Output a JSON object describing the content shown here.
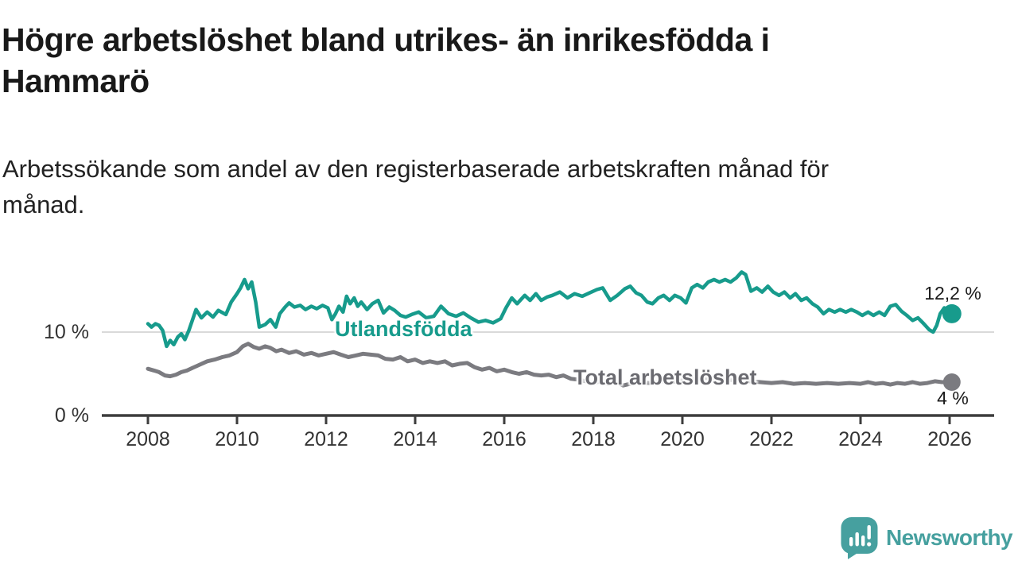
{
  "header": {
    "title": "Högre arbetslöshet bland utrikes- än inrikesfödda i Hammarö",
    "title_line1": "Högre arbetslöshet bland utrikes- än inrikesfödda i",
    "title_line2": "Hammarö",
    "subtitle_line1": "Arbetssökande som andel av den registerbaserade arbetskraften månad för",
    "subtitle_line2": "månad."
  },
  "colors": {
    "accent_teal": "#179b8c",
    "line_gray": "#7b7b80",
    "label_gray": "#6b6b71",
    "axis": "#3d3d3d",
    "tick_text": "#333333",
    "gridline": "#d9d9d9",
    "annotation_text": "#1a1a1a",
    "logo_teal": "#46a09f",
    "background": "#ffffff"
  },
  "chart_data": {
    "type": "line",
    "title": "Högre arbetslöshet bland utrikes- än inrikesfödda i Hammarö",
    "xlabel": "",
    "ylabel": "",
    "unit": "%",
    "grid": "horizontal-10-only",
    "legend_position": "inline-labels-on-lines",
    "x_range": [
      2008,
      2026.3
    ],
    "ylim": [
      0,
      18.5
    ],
    "x_ticks": [
      2008,
      2010,
      2012,
      2014,
      2016,
      2018,
      2020,
      2022,
      2024,
      2026
    ],
    "yaxis": {
      "ticks": [
        {
          "value": 0,
          "label": "0 %"
        },
        {
          "value": 10,
          "label": "10 %"
        }
      ]
    },
    "series": [
      {
        "name": "Utlandsfödda",
        "color": "#179b8c",
        "end_label": "12,2 %",
        "end_value": 12.2,
        "points": [
          [
            2008.0,
            11.0
          ],
          [
            2008.08,
            10.6
          ],
          [
            2008.17,
            11.0
          ],
          [
            2008.25,
            10.8
          ],
          [
            2008.33,
            10.2
          ],
          [
            2008.42,
            8.3
          ],
          [
            2008.5,
            9.0
          ],
          [
            2008.58,
            8.5
          ],
          [
            2008.67,
            9.4
          ],
          [
            2008.75,
            9.8
          ],
          [
            2008.83,
            9.1
          ],
          [
            2008.92,
            10.2
          ],
          [
            2009.08,
            12.7
          ],
          [
            2009.2,
            11.7
          ],
          [
            2009.33,
            12.4
          ],
          [
            2009.46,
            11.8
          ],
          [
            2009.58,
            12.6
          ],
          [
            2009.75,
            12.1
          ],
          [
            2009.87,
            13.6
          ],
          [
            2010.0,
            14.6
          ],
          [
            2010.08,
            15.3
          ],
          [
            2010.17,
            16.3
          ],
          [
            2010.25,
            15.2
          ],
          [
            2010.33,
            16.0
          ],
          [
            2010.42,
            13.6
          ],
          [
            2010.5,
            10.6
          ],
          [
            2010.63,
            10.9
          ],
          [
            2010.75,
            11.5
          ],
          [
            2010.87,
            10.6
          ],
          [
            2010.96,
            12.2
          ],
          [
            2011.08,
            13.0
          ],
          [
            2011.17,
            13.5
          ],
          [
            2011.29,
            13.0
          ],
          [
            2011.42,
            13.2
          ],
          [
            2011.54,
            12.7
          ],
          [
            2011.67,
            13.1
          ],
          [
            2011.79,
            12.8
          ],
          [
            2011.92,
            13.2
          ],
          [
            2012.04,
            12.9
          ],
          [
            2012.13,
            11.5
          ],
          [
            2012.21,
            12.2
          ],
          [
            2012.29,
            13.1
          ],
          [
            2012.38,
            12.4
          ],
          [
            2012.46,
            14.3
          ],
          [
            2012.54,
            13.4
          ],
          [
            2012.63,
            14.1
          ],
          [
            2012.71,
            13.1
          ],
          [
            2012.79,
            13.6
          ],
          [
            2012.92,
            12.7
          ],
          [
            2013.04,
            13.4
          ],
          [
            2013.17,
            13.8
          ],
          [
            2013.29,
            12.3
          ],
          [
            2013.42,
            13.0
          ],
          [
            2013.54,
            12.6
          ],
          [
            2013.67,
            12.0
          ],
          [
            2013.79,
            11.8
          ],
          [
            2013.92,
            12.1
          ],
          [
            2014.08,
            12.4
          ],
          [
            2014.25,
            11.7
          ],
          [
            2014.42,
            11.9
          ],
          [
            2014.58,
            13.1
          ],
          [
            2014.75,
            12.2
          ],
          [
            2014.92,
            11.9
          ],
          [
            2015.08,
            12.3
          ],
          [
            2015.25,
            11.7
          ],
          [
            2015.42,
            11.2
          ],
          [
            2015.58,
            11.4
          ],
          [
            2015.75,
            11.1
          ],
          [
            2015.92,
            11.6
          ],
          [
            2016.04,
            12.9
          ],
          [
            2016.17,
            14.1
          ],
          [
            2016.29,
            13.4
          ],
          [
            2016.46,
            14.4
          ],
          [
            2016.58,
            13.8
          ],
          [
            2016.71,
            14.6
          ],
          [
            2016.83,
            13.8
          ],
          [
            2016.96,
            14.2
          ],
          [
            2017.08,
            14.4
          ],
          [
            2017.25,
            14.8
          ],
          [
            2017.42,
            14.1
          ],
          [
            2017.58,
            14.6
          ],
          [
            2017.75,
            14.3
          ],
          [
            2017.92,
            14.7
          ],
          [
            2018.08,
            15.1
          ],
          [
            2018.21,
            15.3
          ],
          [
            2018.38,
            13.8
          ],
          [
            2018.54,
            14.4
          ],
          [
            2018.71,
            15.2
          ],
          [
            2018.83,
            15.5
          ],
          [
            2018.96,
            14.7
          ],
          [
            2019.08,
            14.4
          ],
          [
            2019.21,
            13.6
          ],
          [
            2019.33,
            13.4
          ],
          [
            2019.46,
            14.1
          ],
          [
            2019.58,
            14.4
          ],
          [
            2019.71,
            13.8
          ],
          [
            2019.83,
            14.4
          ],
          [
            2019.96,
            14.1
          ],
          [
            2020.08,
            13.5
          ],
          [
            2020.21,
            15.3
          ],
          [
            2020.33,
            15.7
          ],
          [
            2020.46,
            15.3
          ],
          [
            2020.58,
            16.0
          ],
          [
            2020.71,
            16.3
          ],
          [
            2020.83,
            16.0
          ],
          [
            2020.96,
            16.3
          ],
          [
            2021.08,
            16.0
          ],
          [
            2021.21,
            16.5
          ],
          [
            2021.33,
            17.2
          ],
          [
            2021.42,
            16.9
          ],
          [
            2021.54,
            14.9
          ],
          [
            2021.67,
            15.3
          ],
          [
            2021.79,
            14.8
          ],
          [
            2021.92,
            15.5
          ],
          [
            2022.04,
            14.8
          ],
          [
            2022.17,
            14.4
          ],
          [
            2022.29,
            14.8
          ],
          [
            2022.42,
            14.1
          ],
          [
            2022.54,
            14.6
          ],
          [
            2022.67,
            13.8
          ],
          [
            2022.79,
            14.1
          ],
          [
            2022.92,
            13.4
          ],
          [
            2023.04,
            13.0
          ],
          [
            2023.17,
            12.2
          ],
          [
            2023.29,
            12.7
          ],
          [
            2023.42,
            12.4
          ],
          [
            2023.54,
            12.7
          ],
          [
            2023.67,
            12.4
          ],
          [
            2023.79,
            12.7
          ],
          [
            2023.92,
            12.4
          ],
          [
            2024.04,
            12.0
          ],
          [
            2024.17,
            12.4
          ],
          [
            2024.29,
            12.0
          ],
          [
            2024.42,
            12.4
          ],
          [
            2024.54,
            12.0
          ],
          [
            2024.67,
            13.1
          ],
          [
            2024.79,
            13.3
          ],
          [
            2024.92,
            12.5
          ],
          [
            2025.04,
            12.0
          ],
          [
            2025.17,
            11.4
          ],
          [
            2025.29,
            11.7
          ],
          [
            2025.42,
            11.0
          ],
          [
            2025.54,
            10.3
          ],
          [
            2025.63,
            10.0
          ],
          [
            2025.71,
            10.8
          ],
          [
            2025.79,
            12.2
          ],
          [
            2025.88,
            12.9
          ],
          [
            2025.96,
            11.9
          ],
          [
            2026.05,
            12.2
          ]
        ]
      },
      {
        "name": "Total arbetslöshet",
        "color": "#7b7b80",
        "end_label": "4 %",
        "end_value": 4.0,
        "points": [
          [
            2008.0,
            5.6
          ],
          [
            2008.13,
            5.4
          ],
          [
            2008.25,
            5.2
          ],
          [
            2008.38,
            4.8
          ],
          [
            2008.5,
            4.7
          ],
          [
            2008.63,
            4.9
          ],
          [
            2008.75,
            5.2
          ],
          [
            2008.88,
            5.4
          ],
          [
            2009.0,
            5.7
          ],
          [
            2009.17,
            6.1
          ],
          [
            2009.33,
            6.5
          ],
          [
            2009.5,
            6.7
          ],
          [
            2009.67,
            7.0
          ],
          [
            2009.83,
            7.2
          ],
          [
            2010.0,
            7.6
          ],
          [
            2010.13,
            8.3
          ],
          [
            2010.25,
            8.6
          ],
          [
            2010.38,
            8.2
          ],
          [
            2010.5,
            8.0
          ],
          [
            2010.63,
            8.3
          ],
          [
            2010.75,
            8.1
          ],
          [
            2010.88,
            7.7
          ],
          [
            2011.0,
            7.9
          ],
          [
            2011.17,
            7.5
          ],
          [
            2011.33,
            7.7
          ],
          [
            2011.5,
            7.3
          ],
          [
            2011.67,
            7.5
          ],
          [
            2011.83,
            7.2
          ],
          [
            2012.0,
            7.4
          ],
          [
            2012.17,
            7.6
          ],
          [
            2012.33,
            7.3
          ],
          [
            2012.5,
            7.0
          ],
          [
            2012.67,
            7.2
          ],
          [
            2012.83,
            7.4
          ],
          [
            2013.0,
            7.3
          ],
          [
            2013.17,
            7.2
          ],
          [
            2013.33,
            6.8
          ],
          [
            2013.5,
            6.7
          ],
          [
            2013.67,
            7.0
          ],
          [
            2013.83,
            6.5
          ],
          [
            2014.0,
            6.7
          ],
          [
            2014.17,
            6.3
          ],
          [
            2014.33,
            6.5
          ],
          [
            2014.5,
            6.3
          ],
          [
            2014.67,
            6.5
          ],
          [
            2014.83,
            6.0
          ],
          [
            2015.0,
            6.2
          ],
          [
            2015.17,
            6.3
          ],
          [
            2015.33,
            5.8
          ],
          [
            2015.5,
            5.5
          ],
          [
            2015.67,
            5.7
          ],
          [
            2015.83,
            5.3
          ],
          [
            2016.0,
            5.5
          ],
          [
            2016.17,
            5.2
          ],
          [
            2016.33,
            5.0
          ],
          [
            2016.5,
            5.2
          ],
          [
            2016.67,
            4.9
          ],
          [
            2016.83,
            4.8
          ],
          [
            2017.0,
            4.9
          ],
          [
            2017.17,
            4.6
          ],
          [
            2017.33,
            4.8
          ],
          [
            2017.5,
            4.4
          ],
          [
            2017.67,
            4.3
          ],
          [
            2017.83,
            4.1
          ],
          [
            2018.0,
            3.9
          ],
          [
            2018.17,
            4.1
          ],
          [
            2018.33,
            3.8
          ],
          [
            2018.5,
            4.1
          ],
          [
            2018.67,
            3.6
          ],
          [
            2018.83,
            3.8
          ],
          [
            2019.0,
            4.0
          ],
          [
            2019.25,
            3.9
          ],
          [
            2019.5,
            4.1
          ],
          [
            2019.75,
            4.0
          ],
          [
            2020.0,
            4.2
          ],
          [
            2020.25,
            4.4
          ],
          [
            2020.5,
            4.5
          ],
          [
            2020.75,
            4.4
          ],
          [
            2021.0,
            4.3
          ],
          [
            2021.25,
            4.2
          ],
          [
            2021.5,
            4.1
          ],
          [
            2021.75,
            4.0
          ],
          [
            2022.0,
            3.9
          ],
          [
            2022.25,
            4.0
          ],
          [
            2022.5,
            3.8
          ],
          [
            2022.75,
            3.9
          ],
          [
            2023.0,
            3.8
          ],
          [
            2023.25,
            3.9
          ],
          [
            2023.5,
            3.8
          ],
          [
            2023.75,
            3.9
          ],
          [
            2024.0,
            3.8
          ],
          [
            2024.17,
            4.0
          ],
          [
            2024.33,
            3.8
          ],
          [
            2024.5,
            3.9
          ],
          [
            2024.67,
            3.7
          ],
          [
            2024.83,
            3.9
          ],
          [
            2025.0,
            3.8
          ],
          [
            2025.17,
            4.0
          ],
          [
            2025.33,
            3.8
          ],
          [
            2025.5,
            3.9
          ],
          [
            2025.67,
            4.1
          ],
          [
            2025.83,
            4.0
          ],
          [
            2026.05,
            4.0
          ]
        ]
      }
    ]
  },
  "branding": {
    "logo_text": "Newsworthy",
    "logo_icon": "bar-chart-speech-bubble-icon"
  }
}
